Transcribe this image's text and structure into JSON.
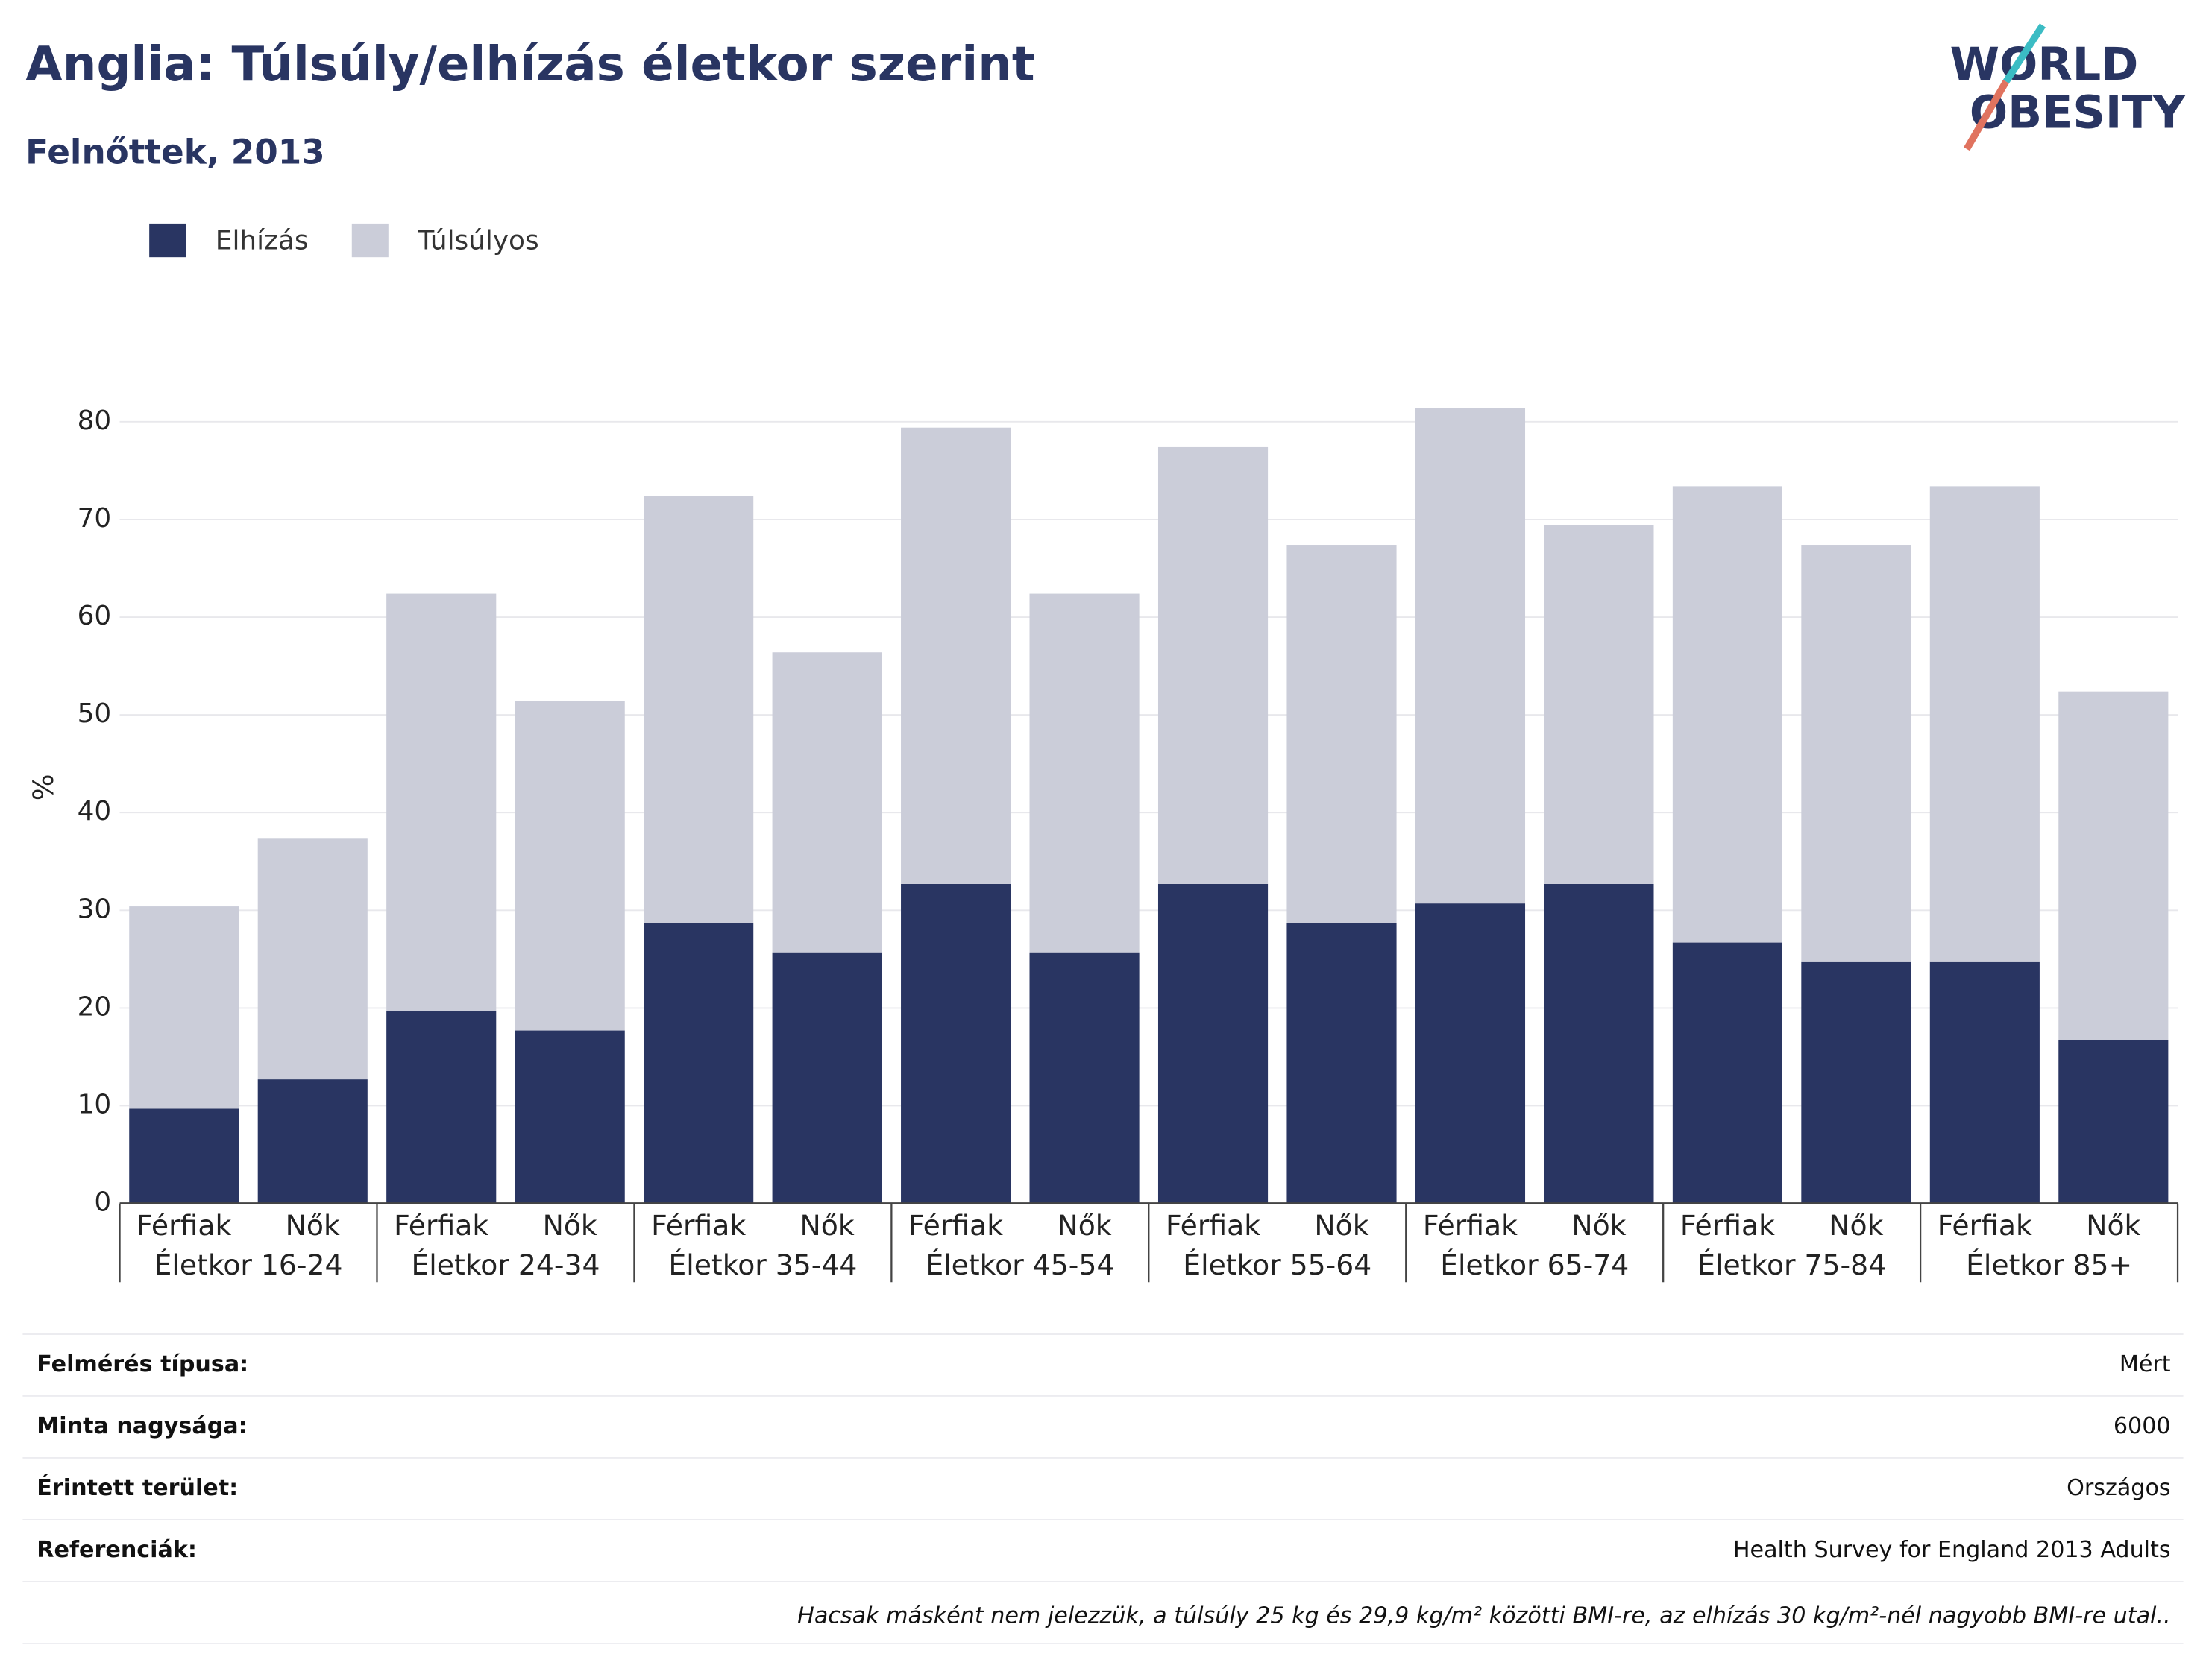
{
  "chart_data": {
    "type": "bar",
    "stacked": true,
    "title": "Anglia: Túlsúly/elhízás életkor szerint",
    "subtitle": "Felnőttek, 2013",
    "ylabel": "%",
    "categories": [
      "Férfiak",
      "Nők",
      "Férfiak",
      "Nők",
      "Férfiak",
      "Nők",
      "Férfiak",
      "Nők",
      "Férfiak",
      "Nők",
      "Férfiak",
      "Nők",
      "Férfiak",
      "Nők",
      "Férfiak",
      "Nők"
    ],
    "groups": [
      "Életkor 16-24",
      "Életkor 24-34",
      "Életkor 35-44",
      "Életkor 45-54",
      "Életkor 55-64",
      "Életkor 65-74",
      "Életkor 75-84",
      "Életkor 85+"
    ],
    "series": [
      {
        "name": "Elhízás",
        "color": "#293562",
        "values": [
          9.7,
          12.7,
          19.7,
          17.7,
          28.7,
          25.7,
          32.7,
          25.7,
          32.7,
          28.7,
          30.7,
          32.7,
          26.7,
          24.7,
          24.7,
          16.7
        ]
      },
      {
        "name": "Túlsúlyos",
        "color": "#cbcdd9",
        "values": [
          20.7,
          24.7,
          42.7,
          33.7,
          43.7,
          30.7,
          46.7,
          36.7,
          44.7,
          38.7,
          50.7,
          36.7,
          46.7,
          42.7,
          48.7,
          35.7
        ]
      }
    ],
    "ylim": [
      0,
      84
    ],
    "yticks": [
      0,
      10,
      20,
      30,
      40,
      50,
      60,
      70,
      80
    ],
    "grid": true,
    "legend": "top-left"
  },
  "logo": {
    "line1": "WORLD",
    "line2": "OBESITY"
  },
  "footer": {
    "rows": [
      [
        "Felmérés típusa:",
        "Mért"
      ],
      [
        "Minta nagysága:",
        "6000"
      ],
      [
        "Érintett terület:",
        "Országos"
      ],
      [
        "Referenciák:",
        "Health Survey for England 2013 Adults"
      ]
    ],
    "note": "Hacsak másként nem jelezzük, a túlsúly 25 kg és 29,9 kg/m² közötti BMI-re, az elhízás 30 kg/m²-nél nagyobb BMI-re utal.."
  }
}
